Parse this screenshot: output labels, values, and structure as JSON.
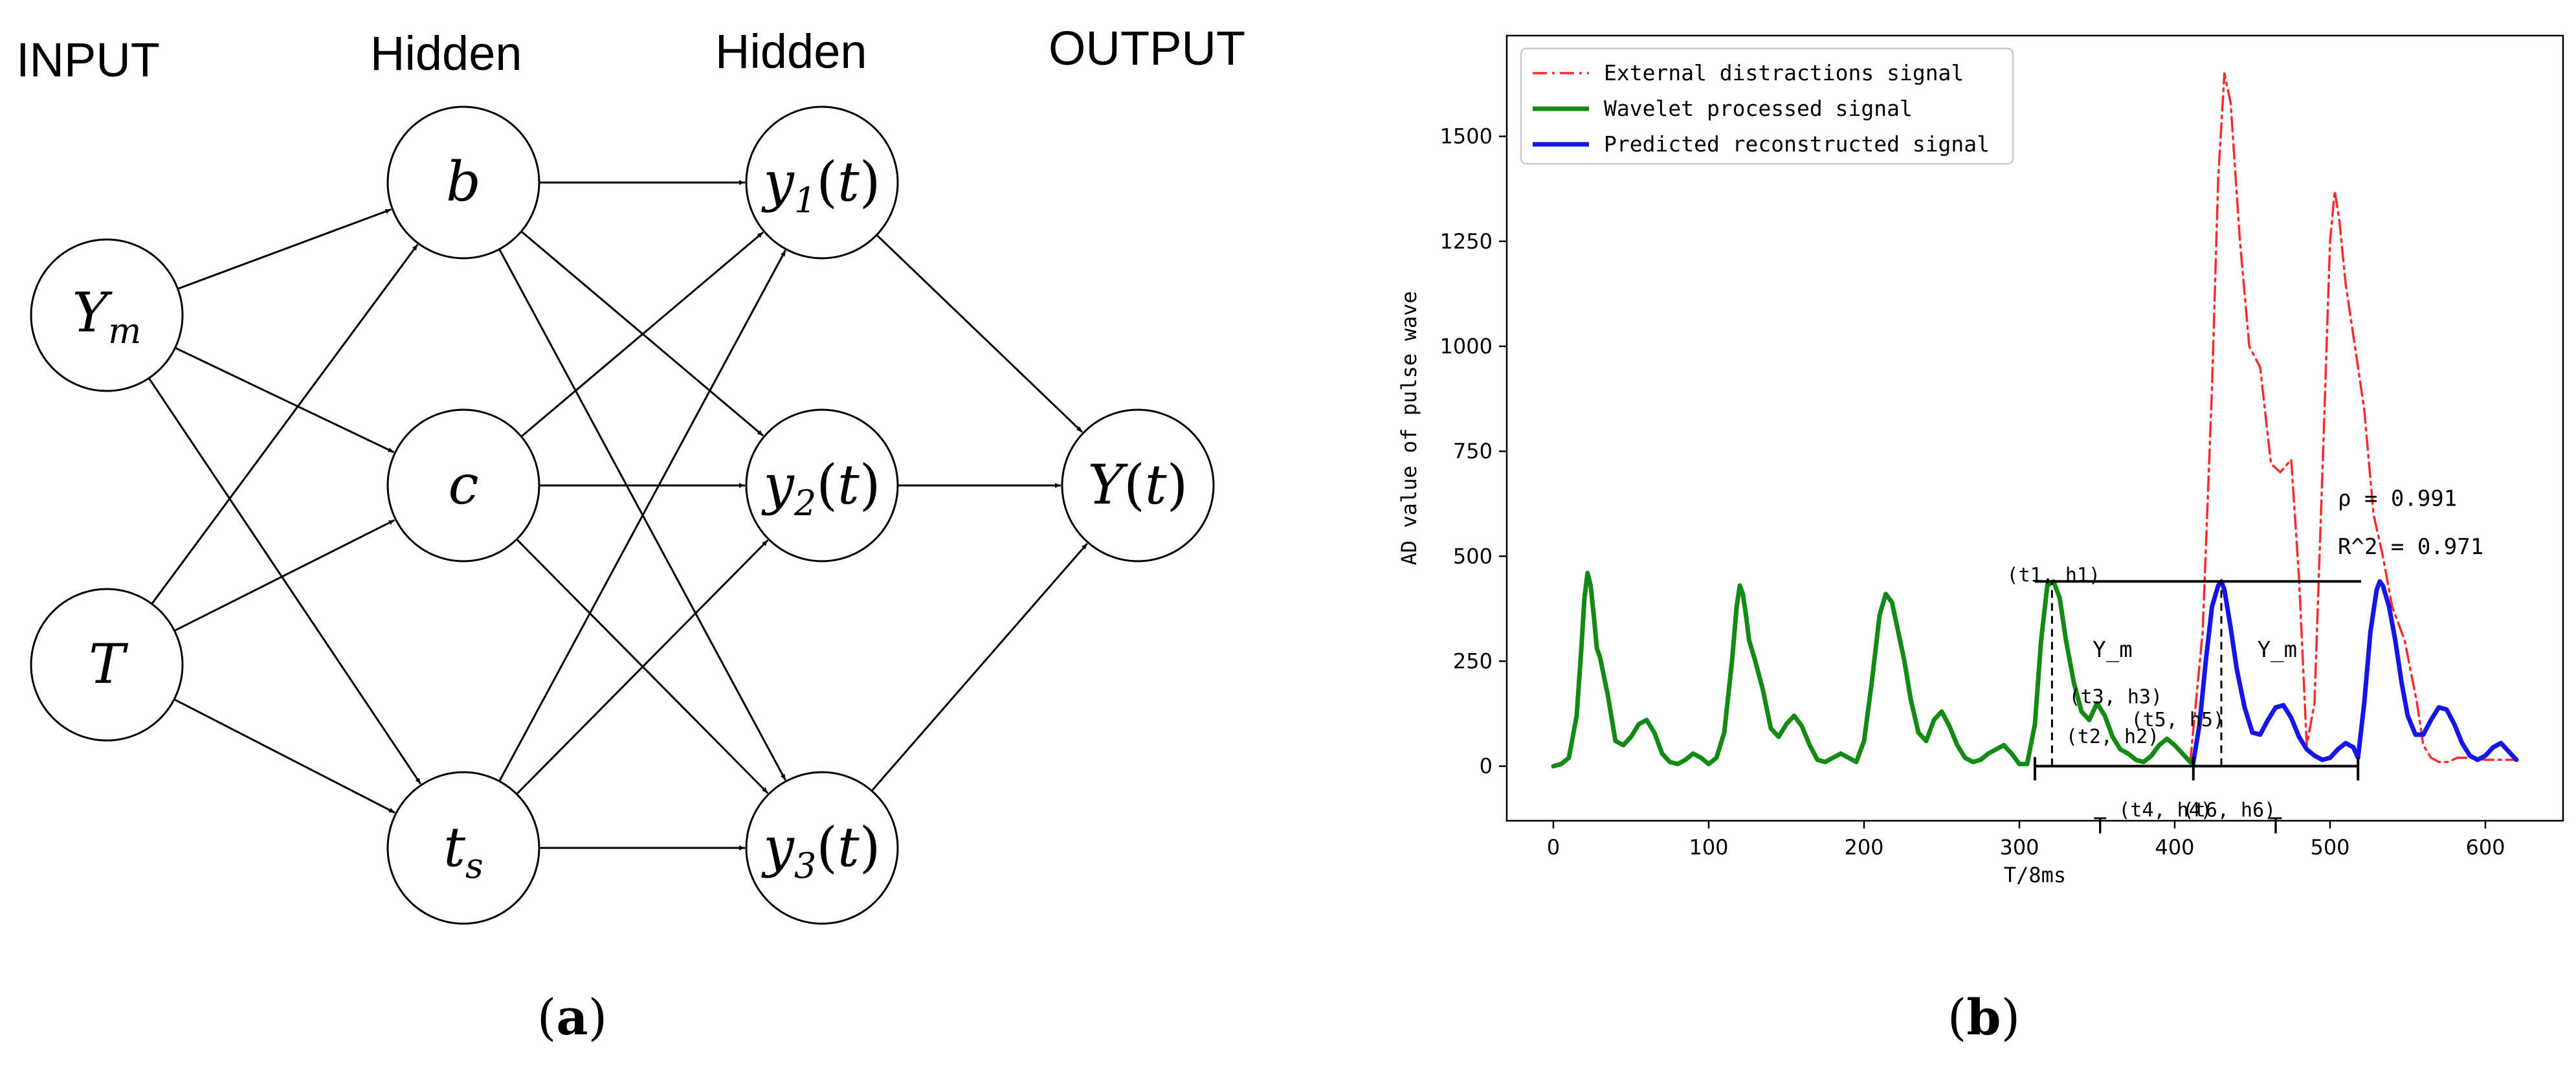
{
  "panel_a": {
    "label": "a",
    "layers": [
      "INPUT",
      "Hidden",
      "Hidden",
      "OUTPUT"
    ],
    "nodes": {
      "ym": {
        "base": "Y",
        "sub": "m",
        "arg": ""
      },
      "t": {
        "base": "T",
        "sub": "",
        "arg": ""
      },
      "b": {
        "base": "b",
        "sub": "",
        "arg": ""
      },
      "c": {
        "base": "c",
        "sub": "",
        "arg": ""
      },
      "ts": {
        "base": "t",
        "sub": "s",
        "arg": ""
      },
      "y1": {
        "base": "y",
        "sub": "1",
        "arg": "t"
      },
      "y2": {
        "base": "y",
        "sub": "2",
        "arg": "t"
      },
      "y3": {
        "base": "y",
        "sub": "3",
        "arg": "t"
      },
      "yout": {
        "base": "Y",
        "sub": "",
        "arg": "t"
      }
    },
    "edges": [
      [
        "ym",
        "b"
      ],
      [
        "ym",
        "c"
      ],
      [
        "ym",
        "ts"
      ],
      [
        "t",
        "b"
      ],
      [
        "t",
        "c"
      ],
      [
        "t",
        "ts"
      ],
      [
        "b",
        "y1"
      ],
      [
        "b",
        "y2"
      ],
      [
        "b",
        "y3"
      ],
      [
        "c",
        "y1"
      ],
      [
        "c",
        "y2"
      ],
      [
        "c",
        "y3"
      ],
      [
        "ts",
        "y1"
      ],
      [
        "ts",
        "y2"
      ],
      [
        "ts",
        "y3"
      ],
      [
        "y1",
        "yout"
      ],
      [
        "y2",
        "yout"
      ],
      [
        "y3",
        "yout"
      ]
    ]
  },
  "panel_b": {
    "label": "b",
    "chart_data": {
      "type": "line",
      "xlabel": "T/8ms",
      "ylabel": "AD value of pulse wave",
      "xlim": [
        -30,
        650
      ],
      "ylim": [
        -130,
        1740
      ],
      "xticks": [
        0,
        100,
        200,
        300,
        400,
        500,
        600
      ],
      "yticks": [
        0,
        250,
        500,
        750,
        1000,
        1250,
        1500
      ],
      "grid": false,
      "legend_position": "top-left",
      "series": [
        {
          "name": "External distractions signal",
          "color": "#ff2a2a",
          "style": "dashdot",
          "x": [
            410,
            418,
            424,
            428,
            432,
            436,
            442,
            448,
            455,
            462,
            468,
            475,
            480,
            485,
            490,
            496,
            500,
            503,
            506,
            510,
            516,
            522,
            528,
            534,
            540,
            548,
            556,
            560,
            565,
            570,
            576,
            582,
            590,
            600,
            610,
            620
          ],
          "y": [
            10,
            320,
            900,
            1400,
            1650,
            1580,
            1250,
            1000,
            950,
            720,
            700,
            730,
            450,
            50,
            150,
            800,
            1250,
            1370,
            1300,
            1150,
            1000,
            850,
            600,
            500,
            380,
            300,
            150,
            50,
            20,
            10,
            10,
            20,
            20,
            15,
            15,
            15
          ]
        },
        {
          "name": "Wavelet processed signal",
          "color": "#138a13",
          "style": "solid",
          "x": [
            0,
            5,
            10,
            15,
            18,
            20,
            22,
            24,
            26,
            28,
            30,
            35,
            40,
            45,
            50,
            55,
            60,
            65,
            70,
            75,
            80,
            85,
            90,
            95,
            100,
            105,
            110,
            115,
            118,
            120,
            122,
            124,
            126,
            130,
            135,
            140,
            145,
            150,
            155,
            160,
            165,
            170,
            175,
            180,
            185,
            190,
            195,
            200,
            205,
            210,
            214,
            218,
            222,
            226,
            230,
            235,
            240,
            245,
            250,
            255,
            260,
            265,
            270,
            275,
            280,
            285,
            290,
            295,
            300,
            305,
            310,
            314,
            318,
            322,
            326,
            330,
            335,
            340,
            345,
            350,
            355,
            360,
            365,
            370,
            375,
            380,
            385,
            390,
            395,
            400,
            405,
            410,
            412
          ],
          "y": [
            0,
            5,
            20,
            120,
            280,
            400,
            460,
            430,
            360,
            280,
            260,
            170,
            60,
            50,
            70,
            100,
            110,
            80,
            30,
            10,
            5,
            15,
            30,
            20,
            5,
            20,
            80,
            250,
            380,
            430,
            410,
            360,
            300,
            250,
            180,
            90,
            70,
            100,
            120,
            95,
            50,
            15,
            10,
            20,
            30,
            20,
            10,
            60,
            200,
            360,
            410,
            390,
            320,
            250,
            160,
            80,
            60,
            110,
            130,
            95,
            50,
            20,
            10,
            15,
            30,
            40,
            50,
            30,
            5,
            5,
            100,
            300,
            430,
            440,
            400,
            300,
            200,
            130,
            110,
            150,
            120,
            70,
            40,
            30,
            15,
            10,
            25,
            50,
            65,
            50,
            30,
            10,
            5
          ]
        },
        {
          "name": "Predicted reconstructed signal",
          "color": "#1515e8",
          "style": "solid",
          "x": [
            412,
            416,
            420,
            424,
            428,
            430,
            432,
            436,
            440,
            445,
            450,
            455,
            460,
            465,
            470,
            475,
            480,
            485,
            490,
            495,
            500,
            505,
            510,
            515,
            518,
            522,
            526,
            530,
            532,
            534,
            538,
            542,
            546,
            550,
            555,
            560,
            565,
            570,
            575,
            580,
            585,
            590,
            595,
            600,
            605,
            610,
            615,
            620
          ],
          "y": [
            10,
            100,
            250,
            380,
            430,
            440,
            420,
            330,
            230,
            140,
            80,
            75,
            110,
            140,
            145,
            115,
            70,
            40,
            25,
            15,
            20,
            40,
            55,
            45,
            20,
            150,
            320,
            420,
            440,
            430,
            380,
            300,
            200,
            120,
            75,
            75,
            110,
            140,
            135,
            100,
            55,
            25,
            15,
            25,
            45,
            55,
            35,
            15
          ]
        }
      ],
      "annotations": [
        {
          "text": "(t1, h1)",
          "x": 322,
          "y": 440
        },
        {
          "text": "Y_m",
          "x": 360,
          "y": 260
        },
        {
          "text": "(t3, h3)",
          "x": 362,
          "y": 150
        },
        {
          "text": "(t2, h2)",
          "x": 360,
          "y": 55
        },
        {
          "text": "(t5, h5)",
          "x": 402,
          "y": 95
        },
        {
          "text": "(t4, h4)",
          "x": 394,
          "y": -120
        },
        {
          "text": "(t6, h6)",
          "x": 435,
          "y": -120
        },
        {
          "text": "T",
          "x": 352,
          "y": -160
        },
        {
          "text": "Y_m",
          "x": 466,
          "y": 260
        },
        {
          "text": "T",
          "x": 465,
          "y": -160
        },
        {
          "text": "ρ  = 0.991",
          "x": 505,
          "y": 620
        },
        {
          "text": "R^2 = 0.971",
          "x": 505,
          "y": 505
        }
      ],
      "reference_lines": {
        "hline_top": {
          "y": 440,
          "x": [
            310,
            520
          ]
        },
        "hline_bottom": {
          "y": 0,
          "x": [
            310,
            518
          ]
        },
        "dashed_vertical": [
          {
            "x": 321,
            "y": [
              0,
              440
            ]
          },
          {
            "x": 430,
            "y": [
              0,
              440
            ]
          }
        ],
        "bracket_ticks_x": [
          310,
          412,
          518
        ]
      }
    }
  }
}
